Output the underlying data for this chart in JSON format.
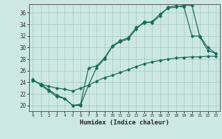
{
  "xlabel": "Humidex (Indice chaleur)",
  "bg_color": "#cce8e0",
  "grid_color": "#aacccc",
  "line_color": "#1a6b5a",
  "xlim": [
    -0.5,
    23.5
  ],
  "ylim": [
    19.0,
    37.5
  ],
  "yticks": [
    20,
    22,
    24,
    26,
    28,
    30,
    32,
    34,
    36
  ],
  "xticks": [
    0,
    1,
    2,
    3,
    4,
    5,
    6,
    7,
    8,
    9,
    10,
    11,
    12,
    13,
    14,
    15,
    16,
    17,
    18,
    19,
    20,
    21,
    22,
    23
  ],
  "line1_x": [
    0,
    1,
    2,
    3,
    4,
    5,
    6,
    7,
    8,
    9,
    10,
    11,
    12,
    13,
    14,
    15,
    16,
    17,
    18,
    19,
    20,
    21,
    22,
    23
  ],
  "line1_y": [
    24.5,
    23.5,
    22.5,
    21.5,
    21.2,
    20.0,
    20.0,
    23.5,
    26.5,
    28.0,
    30.2,
    31.0,
    31.5,
    33.2,
    34.5,
    34.3,
    35.5,
    37.0,
    37.2,
    37.0,
    32.0,
    32.0,
    30.0,
    29.0
  ],
  "line2_x": [
    0,
    1,
    2,
    3,
    4,
    5,
    6,
    7,
    8,
    9,
    10,
    11,
    12,
    13,
    14,
    15,
    16,
    17,
    18,
    19,
    20,
    21,
    22,
    23
  ],
  "line2_y": [
    24.3,
    23.7,
    22.7,
    21.8,
    21.2,
    20.0,
    20.2,
    26.5,
    26.8,
    28.2,
    30.3,
    31.2,
    31.7,
    33.5,
    34.2,
    34.5,
    35.8,
    36.8,
    37.0,
    37.3,
    37.3,
    31.8,
    29.5,
    29.0
  ],
  "line3_x": [
    0,
    1,
    2,
    3,
    4,
    5,
    6,
    7,
    8,
    9,
    10,
    11,
    12,
    13,
    14,
    15,
    16,
    17,
    18,
    19,
    20,
    21,
    22,
    23
  ],
  "line3_y": [
    24.3,
    23.7,
    23.3,
    23.0,
    22.8,
    22.5,
    23.0,
    23.5,
    24.2,
    24.8,
    25.2,
    25.7,
    26.2,
    26.7,
    27.2,
    27.5,
    27.8,
    28.0,
    28.2,
    28.3,
    28.4,
    28.4,
    28.5,
    28.5
  ]
}
